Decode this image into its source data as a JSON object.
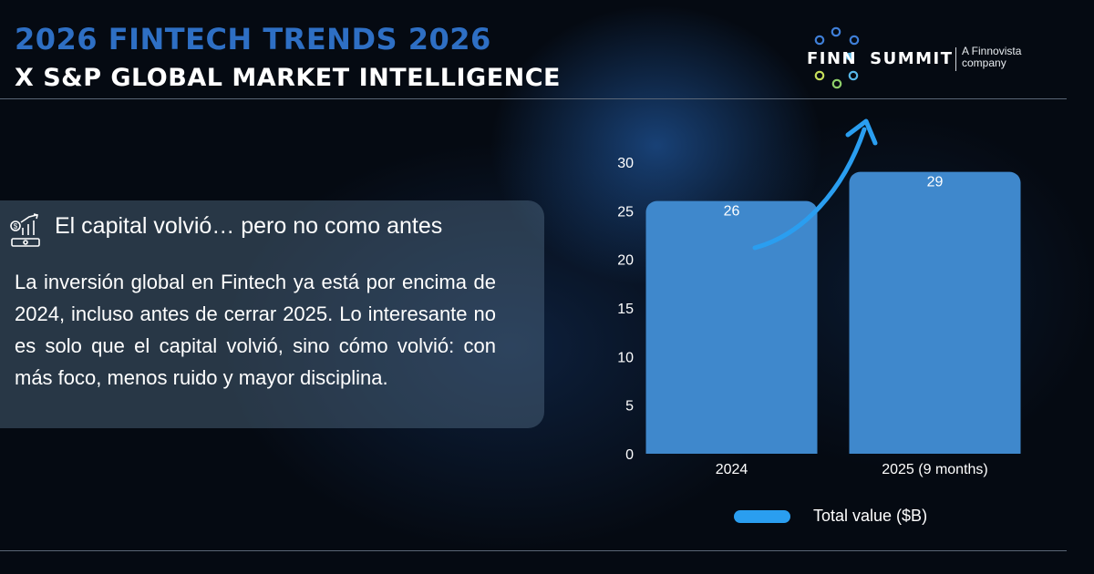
{
  "header": {
    "title_line1": "2026 FINTECH TRENDS 2026",
    "title_line2": "X S&P GLOBAL MARKET INTELLIGENCE"
  },
  "logo": {
    "wordmark_left": "FINN",
    "wordmark_right": "SUMMIT",
    "tagline_line1": "A Finnovista",
    "tagline_line2": "company",
    "dot_colors": [
      "#3f7fd8",
      "#3f7fd8",
      "#3f7fd8",
      "#57b7e8",
      "#57b7e8",
      "#57b7e8",
      "#c7df5b",
      "#8fd06a",
      "#57b7e8"
    ]
  },
  "card": {
    "icon": "money-growth-icon",
    "heading": "El capital volvió… pero no como antes",
    "body": "La inversión global en Fintech ya está por encima de 2024, incluso antes de cerrar 2025. Lo interesante no es solo que el capital volvió, sino cómo volvió: con más foco, menos ruido y mayor disciplina."
  },
  "chart_data": {
    "type": "bar",
    "categories": [
      "2024",
      "2025 (9 months)"
    ],
    "series": [
      {
        "name": "Total value ($B)",
        "values": [
          26,
          29
        ]
      }
    ],
    "data_labels": [
      "26",
      "29"
    ],
    "ylim": [
      0,
      30
    ],
    "yticks": [
      "0",
      "5",
      "10",
      "15",
      "20",
      "25",
      "30"
    ],
    "grid": false,
    "legend": "bottom",
    "bar_color": "#3f88cc",
    "annotation": "upward-trend-arrow-icon",
    "arrow_color": "#2a9ef0"
  },
  "colors": {
    "background": "#050a12",
    "title_accent": "#2e6fc4",
    "legend_swatch": "#2a9ef0"
  }
}
